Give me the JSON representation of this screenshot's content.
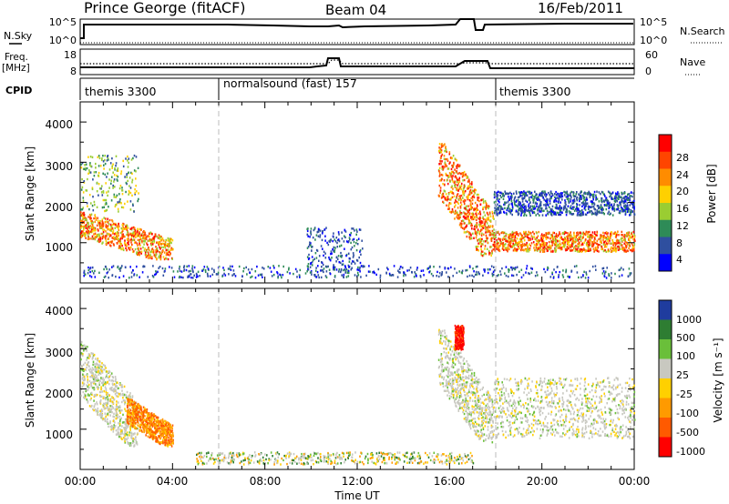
{
  "header": {
    "station": "Prince George (fitACF)",
    "beam": "Beam 04",
    "date": "16/Feb/2011"
  },
  "sky_panel": {
    "left_label": "N.Sky",
    "right_label": "N.Search",
    "left_ticks": [
      "10^5",
      "10^0"
    ],
    "right_ticks": [
      "10^5",
      "10^0"
    ]
  },
  "freq_panel": {
    "left_label_line1": "Freq.",
    "left_label_line2": "[MHz]",
    "right_label": "Nave",
    "left_ticks": [
      "18",
      "8"
    ],
    "right_ticks": [
      "60",
      "0"
    ],
    "left_range": [
      8,
      18
    ],
    "right_range": [
      0,
      60
    ]
  },
  "cpid": {
    "label": "CPID",
    "segments": [
      {
        "name": "themis 3300",
        "start": 0,
        "end": 6
      },
      {
        "name": "normalsound (fast) 157",
        "start": 6,
        "end": 18
      },
      {
        "name": "themis 3300",
        "start": 18,
        "end": 24
      }
    ]
  },
  "x_axis": {
    "label": "Time UT",
    "ticks": [
      "00:00",
      "04:00",
      "08:00",
      "12:00",
      "16:00",
      "20:00",
      "00:00"
    ]
  },
  "colorbars": {
    "power": {
      "label": "Power [dB]",
      "ticks": [
        "28",
        "24",
        "20",
        "16",
        "12",
        "8",
        "4"
      ],
      "colors": [
        "#ff0000",
        "#ff4500",
        "#ff8c00",
        "#ffd000",
        "#9acd32",
        "#2e8b57",
        "#2f4f9f",
        "#0000ff"
      ]
    },
    "velocity": {
      "label": "Velocity [m s⁻¹]",
      "ticks": [
        "1000",
        "500",
        "100",
        "25",
        "-25",
        "-100",
        "-500",
        "-1000"
      ],
      "colors": [
        "#1f3c9e",
        "#2e7d32",
        "#6abf3a",
        "#c8c8c0",
        "#ffd000",
        "#ff9a00",
        "#ff5a00",
        "#ff0000"
      ]
    }
  },
  "chart_data": [
    {
      "type": "heatmap",
      "title": "",
      "xlabel": "Time UT",
      "ylabel": "Slant Range [km]",
      "xlim": [
        0,
        24
      ],
      "ylim": [
        0,
        4500
      ],
      "yticks": [
        "1000",
        "2000",
        "3000",
        "4000"
      ],
      "grid": false,
      "colorbar": "Power [dB]",
      "features": [
        {
          "t": [
            0.0,
            4.0
          ],
          "range": [
            600,
            1800
          ],
          "level": "high",
          "shape": "arc"
        },
        {
          "t": [
            0.0,
            2.5
          ],
          "range": [
            1800,
            3200
          ],
          "level": "medium",
          "shape": "streaks"
        },
        {
          "t": [
            9.8,
            12.2
          ],
          "range": [
            300,
            1400
          ],
          "level": "low",
          "shape": "patches"
        },
        {
          "t": [
            15.5,
            17.9
          ],
          "range": [
            700,
            3500
          ],
          "level": "high",
          "shape": "arc"
        },
        {
          "t": [
            17.9,
            24.0
          ],
          "range": [
            800,
            1300
          ],
          "level": "high",
          "shape": "band"
        },
        {
          "t": [
            17.9,
            24.0
          ],
          "range": [
            1700,
            2300
          ],
          "level": "low",
          "shape": "band"
        },
        {
          "t": [
            0.0,
            24.0
          ],
          "range": [
            150,
            450
          ],
          "level": "low",
          "shape": "ground"
        }
      ]
    },
    {
      "type": "heatmap",
      "title": "",
      "xlabel": "Time UT",
      "ylabel": "Slant Range [km]",
      "xlim": [
        0,
        24
      ],
      "ylim": [
        0,
        4500
      ],
      "yticks": [
        "1000",
        "2000",
        "3000",
        "4000"
      ],
      "grid": false,
      "colorbar": "Velocity [m s⁻¹]",
      "features": [
        {
          "t": [
            0.0,
            2.5
          ],
          "range": [
            600,
            3200
          ],
          "velocity": "near zero",
          "shape": "arc"
        },
        {
          "t": [
            2.0,
            4.0
          ],
          "range": [
            600,
            1800
          ],
          "velocity": "-100 to -500",
          "shape": "arc"
        },
        {
          "t": [
            15.5,
            17.9
          ],
          "range": [
            700,
            3500
          ],
          "velocity": "near zero",
          "shape": "arc"
        },
        {
          "t": [
            16.2,
            16.6
          ],
          "range": [
            3000,
            3600
          ],
          "velocity": "-500 to -1000",
          "shape": "patch"
        },
        {
          "t": [
            17.9,
            24.0
          ],
          "range": [
            800,
            2300
          ],
          "velocity": "near zero",
          "shape": "band"
        },
        {
          "t": [
            5.0,
            17.0
          ],
          "range": [
            150,
            450
          ],
          "velocity": "mixed low",
          "shape": "ground"
        }
      ]
    }
  ]
}
